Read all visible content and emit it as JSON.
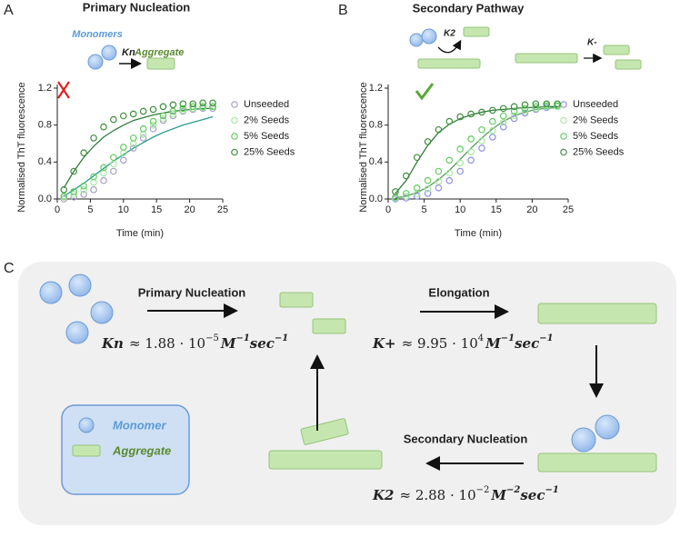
{
  "panels": [
    "A",
    "B",
    "C"
  ],
  "chart_data": [
    {
      "type": "scatter",
      "title": "Primary Nucleation",
      "x_label": "Time (min)",
      "y_label": "Normalised ThT fluorescence",
      "annotations": [
        "Monomers",
        "Kn",
        "Aggregate"
      ],
      "x": [
        1,
        2.5,
        4,
        5.5,
        7,
        8.5,
        10,
        11.5,
        13,
        14.5,
        16,
        17.5,
        19,
        20.5,
        22,
        23.5
      ],
      "series": [
        {
          "name": "Unseeded",
          "color": "#a79fc4",
          "values": [
            0.0,
            0.02,
            0.05,
            0.1,
            0.2,
            0.3,
            0.42,
            0.55,
            0.66,
            0.76,
            0.85,
            0.9,
            0.95,
            0.97,
            0.98,
            0.98
          ]
        },
        {
          "name": "2% Seeds",
          "color": "#a6e8a0",
          "values": [
            0.02,
            0.05,
            0.1,
            0.18,
            0.28,
            0.38,
            0.5,
            0.6,
            0.7,
            0.8,
            0.87,
            0.92,
            0.96,
            0.98,
            0.99,
            1.0
          ]
        },
        {
          "name": "5% Seeds",
          "color": "#62cc5e",
          "values": [
            0.03,
            0.08,
            0.14,
            0.24,
            0.34,
            0.45,
            0.56,
            0.66,
            0.76,
            0.84,
            0.9,
            0.95,
            0.98,
            1.0,
            1.0,
            1.0
          ]
        },
        {
          "name": "25% Seeds",
          "color": "#3f8f3c",
          "values": [
            0.1,
            0.3,
            0.5,
            0.66,
            0.78,
            0.86,
            0.9,
            0.92,
            0.95,
            0.97,
            1.0,
            1.02,
            1.03,
            1.03,
            1.04,
            1.04
          ]
        }
      ],
      "fits": [
        {
          "color": "#2f7d3a",
          "values": [
            0.12,
            0.3,
            0.45,
            0.57,
            0.67,
            0.74,
            0.8,
            0.85,
            0.88,
            0.91,
            0.93,
            0.95,
            0.96,
            0.97,
            0.98,
            0.98
          ]
        },
        {
          "color": "#2a9d8f",
          "values": [
            0.03,
            0.1,
            0.17,
            0.25,
            0.33,
            0.41,
            0.48,
            0.55,
            0.61,
            0.67,
            0.72,
            0.76,
            0.8,
            0.83,
            0.86,
            0.89
          ]
        }
      ],
      "xlim": [
        0,
        25
      ],
      "ylim": [
        0,
        1.2
      ],
      "xticks": [
        0,
        5,
        10,
        15,
        20,
        25
      ],
      "yticks": [
        {
          "value": 0,
          "label": "0.0"
        },
        0.4,
        0.8,
        1.2
      ]
    },
    {
      "type": "scatter",
      "title": "Secondary Pathway",
      "x_label": "Time (min)",
      "y_label": "Normalised ThT fluorescence",
      "annotations": [
        "K2",
        "K-"
      ],
      "x": [
        1,
        2.5,
        4,
        5.5,
        7,
        8.5,
        10,
        11.5,
        13,
        14.5,
        16,
        17.5,
        19,
        20.5,
        22,
        23.5
      ],
      "series": [
        {
          "name": "Unseeded",
          "color": "#8f8fe8",
          "values": [
            0.0,
            0.01,
            0.03,
            0.06,
            0.12,
            0.2,
            0.3,
            0.42,
            0.55,
            0.67,
            0.78,
            0.87,
            0.93,
            0.97,
            0.99,
            1.0
          ]
        },
        {
          "name": "2% Seeds",
          "color": "#a6e8a0",
          "values": [
            0.01,
            0.03,
            0.06,
            0.11,
            0.19,
            0.28,
            0.39,
            0.51,
            0.63,
            0.74,
            0.83,
            0.9,
            0.95,
            0.98,
            1.0,
            1.0
          ]
        },
        {
          "name": "5% Seeds",
          "color": "#62cc5e",
          "values": [
            0.02,
            0.06,
            0.12,
            0.2,
            0.3,
            0.42,
            0.54,
            0.65,
            0.75,
            0.84,
            0.9,
            0.95,
            0.98,
            1.0,
            1.01,
            1.01
          ]
        },
        {
          "name": "25% Seeds",
          "color": "#3f8f3c",
          "values": [
            0.08,
            0.25,
            0.45,
            0.62,
            0.75,
            0.84,
            0.89,
            0.92,
            0.94,
            0.96,
            0.98,
            1.0,
            1.02,
            1.03,
            1.03,
            1.03
          ]
        }
      ],
      "fits": [
        {
          "color": "#2f7d3a",
          "values": [
            0.06,
            0.2,
            0.4,
            0.58,
            0.72,
            0.81,
            0.87,
            0.91,
            0.94,
            0.96,
            0.97,
            0.98,
            0.99,
            0.99,
            1.0,
            1.0
          ]
        },
        {
          "color": "#5a9a5a",
          "values": [
            0.01,
            0.03,
            0.07,
            0.13,
            0.21,
            0.31,
            0.43,
            0.55,
            0.66,
            0.76,
            0.84,
            0.9,
            0.94,
            0.97,
            0.98,
            0.99
          ]
        }
      ],
      "xlim": [
        0,
        25
      ],
      "ylim": [
        0,
        1.2
      ],
      "xticks": [
        0,
        5,
        10,
        15,
        20,
        25
      ],
      "yticks": [
        {
          "value": 0,
          "label": "0.0"
        },
        0.4,
        0.8,
        1.2
      ]
    }
  ],
  "diagram": {
    "steps": [
      "Primary Nucleation",
      "Elongation",
      "Secondary Nucleation"
    ],
    "legend": [
      "Monomer",
      "Aggregate"
    ],
    "equations": [
      [
        "Kn",
        "≈ 1.88 · 10",
        "−5",
        "M",
        "−1",
        "sec",
        "−1"
      ],
      [
        "K+",
        "≈ 9.95 · 10",
        "4",
        "M",
        "−1",
        "sec",
        "−1"
      ],
      [
        "K2",
        "≈ 2.88 · 10",
        "−2",
        "M",
        "−2",
        "sec",
        "−1"
      ]
    ]
  }
}
